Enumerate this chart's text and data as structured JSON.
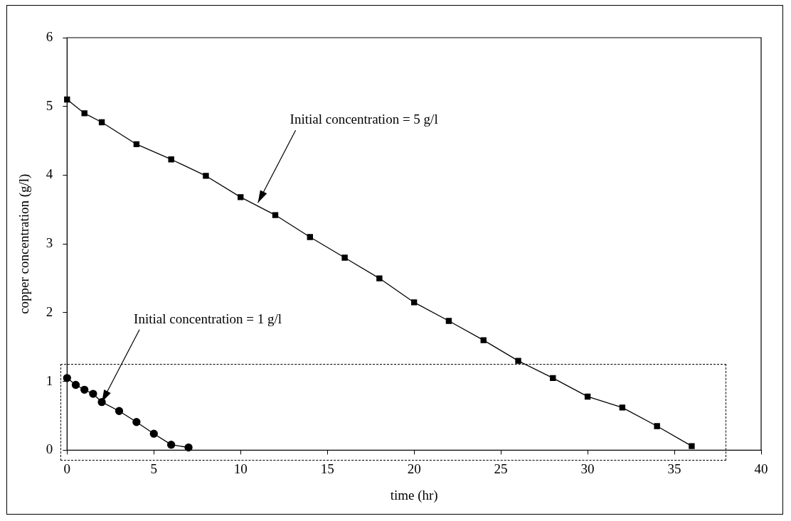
{
  "chart_data": {
    "type": "line",
    "xlabel": "time (hr)",
    "ylabel": "copper concentration (g/l)",
    "xlim": [
      0,
      40
    ],
    "xticks": [
      0,
      5,
      10,
      15,
      20,
      25,
      30,
      35,
      40
    ],
    "ylim": [
      0,
      6
    ],
    "yticks": [
      0,
      1,
      2,
      3,
      4,
      5,
      6
    ],
    "grid": false,
    "legend": false,
    "series": [
      {
        "color": "#000000",
        "marker": "square",
        "x": [
          0,
          1,
          2,
          4,
          6,
          8,
          10,
          12,
          14,
          16,
          18,
          20,
          22,
          24,
          26,
          28,
          30,
          32,
          34,
          36
        ],
        "values": [
          5.1,
          4.9,
          4.77,
          4.45,
          4.23,
          3.99,
          3.68,
          3.42,
          3.1,
          2.8,
          2.5,
          2.15,
          1.88,
          1.6,
          1.3,
          1.05,
          0.78,
          0.62,
          0.35,
          0.06
        ]
      },
      {
        "color": "#000000",
        "marker": "circle",
        "x": [
          0,
          0.5,
          1,
          1.5,
          2,
          3,
          4,
          5,
          6,
          7
        ],
        "values": [
          1.05,
          0.95,
          0.88,
          0.82,
          0.7,
          0.57,
          0.41,
          0.24,
          0.08,
          0.04
        ]
      }
    ],
    "annotations": [
      {
        "text": "Initial concentration = 5 g/l",
        "x": 11,
        "y": 3.6
      },
      {
        "text": "Initial concentration = 1 g/l",
        "x": 2,
        "y": 0.7
      }
    ]
  }
}
